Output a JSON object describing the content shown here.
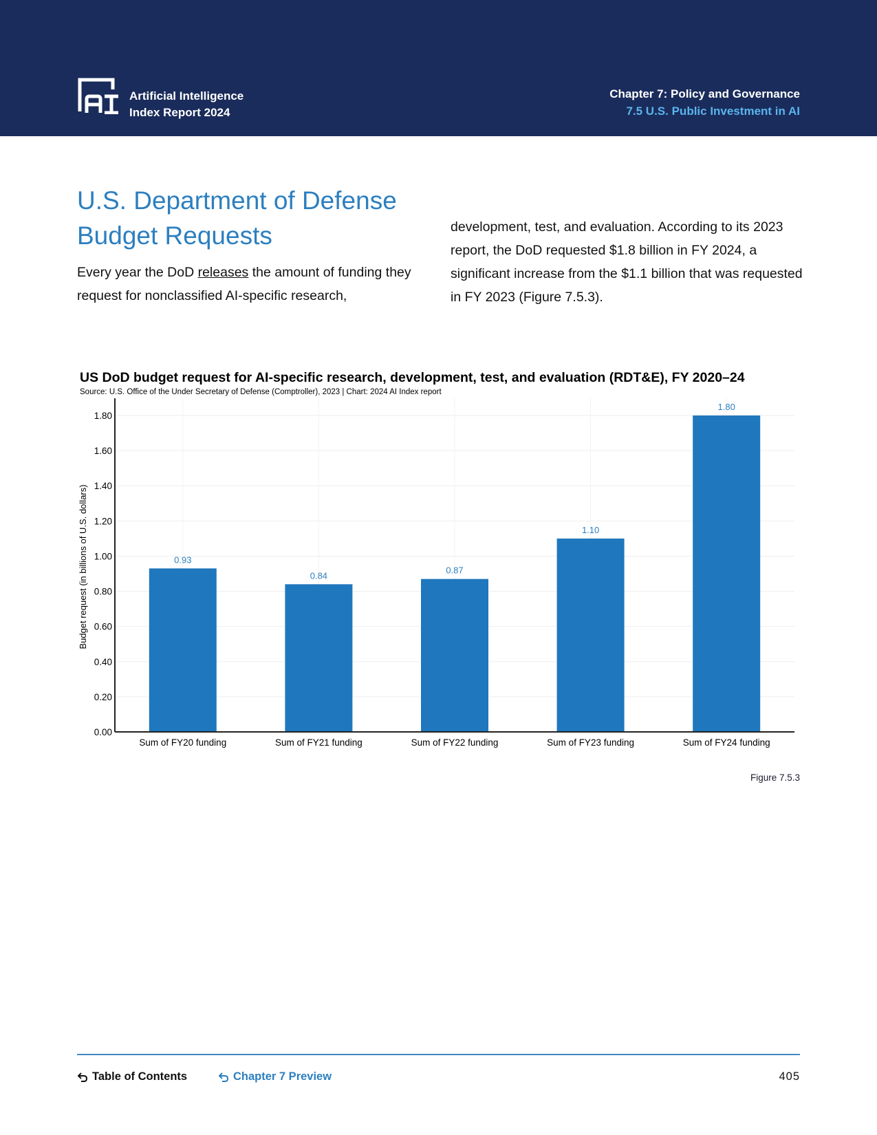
{
  "header": {
    "brand_line1": "Artificial Intelligence",
    "brand_line2": "Index Report 2024",
    "chapter": "Chapter 7: Policy and Governance",
    "section": "7.5 U.S. Public Investment in AI",
    "logo_icon": "ai-index-logo",
    "colors": {
      "background": "#1a2c5b",
      "section": "#5ab4ee"
    }
  },
  "article": {
    "title_line1": "U.S. Department of Defense",
    "title_line2": "Budget Requests",
    "left_para_pre": "Every year the DoD ",
    "left_para_link": "releases",
    "left_para_post": " the amount of funding they request for nonclassified AI-specific research,",
    "right_para": "development, test, and evaluation. According to its 2023 report, the DoD requested $1.8 billion in FY 2024, a significant increase from the $1.1 billion that was requested in FY 2023 (Figure 7.5.3).",
    "title_color": "#2c7fbf"
  },
  "chart_data": {
    "type": "bar",
    "title": "US DoD budget request for AI-specific research, development, test, and evaluation (RDT&E), FY 2020–24",
    "subtitle": "Source: U.S. Office of the Under Secretary of Defense (Comptroller), 2023 | Chart: 2024 AI Index report",
    "xlabel": "",
    "ylabel": "Budget request (in billions of U.S. dollars)",
    "categories": [
      "Sum of FY20 funding",
      "Sum of FY21 funding",
      "Sum of FY22 funding",
      "Sum of FY23 funding",
      "Sum of FY24 funding"
    ],
    "values": [
      0.93,
      0.84,
      0.87,
      1.1,
      1.8
    ],
    "data_labels": [
      "0.93",
      "0.84",
      "0.87",
      "1.10",
      "1.80"
    ],
    "ylim": [
      0,
      1.8
    ],
    "yticks": [
      0,
      0.2,
      0.4,
      0.6,
      0.8,
      1.0,
      1.2,
      1.4,
      1.6,
      1.8
    ],
    "ytick_labels": [
      "0.00",
      "0.20",
      "0.40",
      "0.60",
      "0.80",
      "1.00",
      "1.20",
      "1.40",
      "1.60",
      "1.80"
    ],
    "grid": true,
    "legend": "none",
    "bar_color": "#1f77bd",
    "label_color": "#2c7fbf"
  },
  "figure_label": "Figure 7.5.3",
  "footer": {
    "toc_label": "Table of Contents",
    "chapter_preview_label": "Chapter 7 Preview",
    "page_number": "405",
    "link_color": "#2c7fbf"
  }
}
